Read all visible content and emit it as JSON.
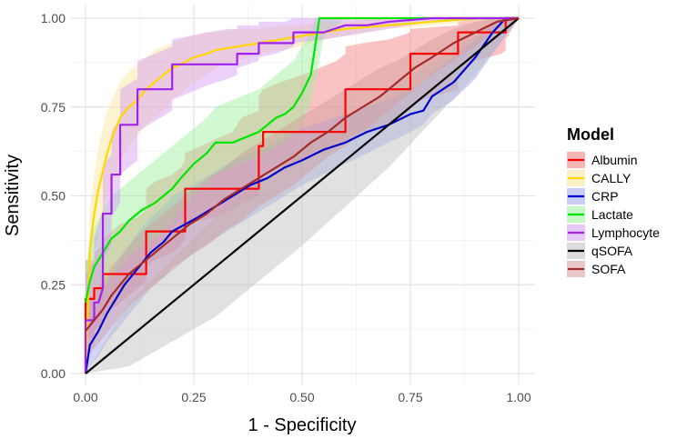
{
  "chart_data": {
    "type": "line",
    "title": "",
    "xlabel": "1 - Specificity",
    "ylabel": "Sensitivity",
    "xlim": [
      0,
      1
    ],
    "ylim": [
      0,
      1
    ],
    "x_ticks": [
      "0.00",
      "0.25",
      "0.50",
      "0.75",
      "1.00"
    ],
    "y_ticks": [
      "0.00",
      "0.25",
      "0.50",
      "0.75",
      "1.00"
    ],
    "grid": true,
    "legend": {
      "title": "Model",
      "position": "right"
    },
    "series": [
      {
        "name": "Albumin",
        "color": "#ff0000",
        "fill": "#f47a7a",
        "x": [
          0,
          0,
          0.02,
          0.02,
          0.04,
          0.04,
          0.06,
          0.08,
          0.12,
          0.14,
          0.14,
          0.16,
          0.2,
          0.22,
          0.23,
          0.23,
          0.3,
          0.34,
          0.36,
          0.4,
          0.4,
          0.41,
          0.41,
          0.45,
          0.5,
          0.54,
          0.58,
          0.6,
          0.6,
          0.64,
          0.7,
          0.75,
          0.75,
          0.86,
          0.86,
          0.9,
          0.96,
          0.97,
          0.97,
          1.0
        ],
        "y": [
          0,
          0.21,
          0.21,
          0.24,
          0.24,
          0.28,
          0.28,
          0.28,
          0.28,
          0.28,
          0.4,
          0.4,
          0.4,
          0.4,
          0.4,
          0.52,
          0.52,
          0.52,
          0.52,
          0.52,
          0.64,
          0.64,
          0.68,
          0.68,
          0.68,
          0.68,
          0.68,
          0.68,
          0.8,
          0.8,
          0.8,
          0.8,
          0.9,
          0.9,
          0.96,
          0.96,
          0.96,
          0.96,
          1.0,
          1.0
        ],
        "lower": [
          0,
          0.1,
          0.1,
          0.12,
          0.14,
          0.16,
          0.18,
          0.2,
          0.24,
          0.26,
          0.3,
          0.32,
          0.34,
          0.36,
          0.38,
          0.42,
          0.44,
          0.46,
          0.48,
          0.5,
          0.52,
          0.54,
          0.56,
          0.58,
          0.6,
          0.62,
          0.64,
          0.65,
          0.66,
          0.68,
          0.7,
          0.74,
          0.76,
          0.8,
          0.84,
          0.88,
          0.9,
          0.91,
          0.94,
          1.0
        ],
        "upper": [
          0,
          0.32,
          0.32,
          0.34,
          0.36,
          0.38,
          0.4,
          0.42,
          0.44,
          0.46,
          0.52,
          0.54,
          0.56,
          0.58,
          0.6,
          0.62,
          0.66,
          0.68,
          0.72,
          0.74,
          0.78,
          0.8,
          0.8,
          0.82,
          0.84,
          0.86,
          0.88,
          0.9,
          0.92,
          0.93,
          0.94,
          0.96,
          0.97,
          0.98,
          0.99,
          1.0,
          1.0,
          1.0,
          1.0,
          1.0
        ]
      },
      {
        "name": "CALLY",
        "color": "#ffd700",
        "fill": "#fce497",
        "x": [
          0,
          0.01,
          0.02,
          0.03,
          0.04,
          0.05,
          0.06,
          0.08,
          0.1,
          0.12,
          0.14,
          0.16,
          0.18,
          0.2,
          0.22,
          0.25,
          0.28,
          0.3,
          0.35,
          0.4,
          0.45,
          0.5,
          0.55,
          0.6,
          0.7,
          0.8,
          0.9,
          1.0
        ],
        "y": [
          0,
          0.35,
          0.45,
          0.52,
          0.57,
          0.62,
          0.66,
          0.72,
          0.75,
          0.77,
          0.8,
          0.82,
          0.84,
          0.86,
          0.87,
          0.89,
          0.9,
          0.91,
          0.92,
          0.93,
          0.94,
          0.95,
          0.96,
          0.97,
          0.98,
          0.99,
          1.0,
          1.0
        ],
        "lower": [
          0,
          0.24,
          0.33,
          0.4,
          0.45,
          0.5,
          0.54,
          0.6,
          0.64,
          0.67,
          0.7,
          0.72,
          0.74,
          0.77,
          0.79,
          0.82,
          0.84,
          0.86,
          0.88,
          0.9,
          0.91,
          0.92,
          0.94,
          0.95,
          0.97,
          0.98,
          0.99,
          1.0
        ],
        "upper": [
          0,
          0.46,
          0.56,
          0.64,
          0.69,
          0.74,
          0.77,
          0.82,
          0.85,
          0.87,
          0.89,
          0.91,
          0.92,
          0.93,
          0.94,
          0.95,
          0.96,
          0.96,
          0.97,
          0.97,
          0.98,
          0.98,
          0.99,
          0.99,
          1.0,
          1.0,
          1.0,
          1.0
        ]
      },
      {
        "name": "CRP",
        "color": "#0000cd",
        "fill": "#9aa5f0",
        "x": [
          0,
          0.01,
          0.03,
          0.05,
          0.07,
          0.09,
          0.11,
          0.13,
          0.15,
          0.18,
          0.2,
          0.23,
          0.26,
          0.3,
          0.34,
          0.38,
          0.42,
          0.46,
          0.5,
          0.55,
          0.6,
          0.65,
          0.7,
          0.75,
          0.78,
          0.8,
          0.85,
          0.9,
          0.94,
          0.97,
          1.0
        ],
        "y": [
          0,
          0.08,
          0.12,
          0.17,
          0.21,
          0.25,
          0.28,
          0.31,
          0.34,
          0.37,
          0.4,
          0.42,
          0.44,
          0.47,
          0.5,
          0.53,
          0.55,
          0.58,
          0.6,
          0.63,
          0.65,
          0.68,
          0.7,
          0.73,
          0.74,
          0.78,
          0.82,
          0.89,
          0.96,
          1.0,
          1.0
        ],
        "lower": [
          0,
          0.02,
          0.05,
          0.09,
          0.12,
          0.15,
          0.18,
          0.21,
          0.24,
          0.27,
          0.3,
          0.32,
          0.35,
          0.38,
          0.41,
          0.44,
          0.47,
          0.5,
          0.53,
          0.56,
          0.59,
          0.62,
          0.65,
          0.68,
          0.7,
          0.73,
          0.77,
          0.83,
          0.9,
          0.95,
          1.0
        ],
        "upper": [
          0,
          0.15,
          0.2,
          0.26,
          0.3,
          0.34,
          0.38,
          0.41,
          0.44,
          0.47,
          0.5,
          0.52,
          0.54,
          0.57,
          0.6,
          0.62,
          0.64,
          0.67,
          0.69,
          0.71,
          0.73,
          0.75,
          0.77,
          0.8,
          0.82,
          0.85,
          0.89,
          0.94,
          0.99,
          1.0,
          1.0
        ]
      },
      {
        "name": "Lactate",
        "color": "#00e600",
        "fill": "#98f098",
        "x": [
          0,
          0.01,
          0.02,
          0.04,
          0.06,
          0.08,
          0.1,
          0.13,
          0.16,
          0.18,
          0.2,
          0.22,
          0.25,
          0.28,
          0.3,
          0.32,
          0.34,
          0.36,
          0.4,
          0.42,
          0.44,
          0.46,
          0.48,
          0.5,
          0.52,
          0.53,
          0.54,
          0.55,
          0.6,
          0.7,
          0.8,
          0.9,
          1.0
        ],
        "y": [
          0.2,
          0.26,
          0.3,
          0.34,
          0.38,
          0.4,
          0.43,
          0.46,
          0.48,
          0.5,
          0.52,
          0.55,
          0.59,
          0.62,
          0.65,
          0.65,
          0.65,
          0.66,
          0.68,
          0.7,
          0.72,
          0.73,
          0.75,
          0.79,
          0.84,
          0.92,
          1.0,
          1.0,
          1.0,
          1.0,
          1.0,
          1.0,
          1.0
        ],
        "lower": [
          0.1,
          0.15,
          0.19,
          0.23,
          0.27,
          0.3,
          0.33,
          0.36,
          0.38,
          0.4,
          0.43,
          0.46,
          0.5,
          0.53,
          0.56,
          0.57,
          0.58,
          0.59,
          0.61,
          0.62,
          0.64,
          0.65,
          0.67,
          0.7,
          0.76,
          0.82,
          0.88,
          0.95,
          1.0,
          1.0,
          1.0,
          1.0,
          1.0
        ],
        "upper": [
          0.3,
          0.36,
          0.41,
          0.46,
          0.5,
          0.52,
          0.54,
          0.57,
          0.6,
          0.62,
          0.64,
          0.66,
          0.69,
          0.72,
          0.75,
          0.76,
          0.77,
          0.78,
          0.8,
          0.82,
          0.84,
          0.86,
          0.88,
          0.92,
          0.96,
          1.0,
          1.0,
          1.0,
          1.0,
          1.0,
          1.0,
          1.0,
          1.0
        ]
      },
      {
        "name": "Lymphocyte",
        "color": "#a020f0",
        "fill": "#d39af5",
        "x": [
          0,
          0,
          0.02,
          0.02,
          0.03,
          0.04,
          0.04,
          0.06,
          0.06,
          0.08,
          0.08,
          0.12,
          0.12,
          0.16,
          0.2,
          0.2,
          0.24,
          0.28,
          0.33,
          0.35,
          0.35,
          0.4,
          0.4,
          0.44,
          0.46,
          0.48,
          0.48,
          0.55,
          0.6,
          0.65,
          0.7,
          0.8,
          1.0
        ],
        "y": [
          0,
          0.15,
          0.15,
          0.2,
          0.2,
          0.24,
          0.45,
          0.45,
          0.56,
          0.56,
          0.7,
          0.7,
          0.8,
          0.8,
          0.8,
          0.87,
          0.87,
          0.87,
          0.87,
          0.87,
          0.9,
          0.9,
          0.93,
          0.93,
          0.93,
          0.93,
          0.96,
          0.96,
          0.98,
          0.98,
          0.99,
          1.0,
          1.0
        ],
        "lower": [
          0,
          0.05,
          0.08,
          0.12,
          0.14,
          0.18,
          0.32,
          0.36,
          0.44,
          0.48,
          0.56,
          0.6,
          0.68,
          0.71,
          0.74,
          0.77,
          0.79,
          0.81,
          0.83,
          0.84,
          0.86,
          0.88,
          0.89,
          0.9,
          0.91,
          0.92,
          0.93,
          0.94,
          0.95,
          0.96,
          0.97,
          0.99,
          1.0
        ],
        "upper": [
          0,
          0.28,
          0.32,
          0.38,
          0.42,
          0.46,
          0.58,
          0.62,
          0.68,
          0.72,
          0.8,
          0.83,
          0.88,
          0.9,
          0.92,
          0.94,
          0.95,
          0.96,
          0.97,
          0.97,
          0.98,
          0.98,
          0.99,
          0.99,
          0.99,
          1.0,
          1.0,
          1.0,
          1.0,
          1.0,
          1.0,
          1.0,
          1.0
        ]
      },
      {
        "name": "qSOFA",
        "color": "#000000",
        "fill": "#bdbdbd",
        "x": [
          0,
          1.0
        ],
        "y": [
          0,
          1.0
        ],
        "lower": [
          0,
          1.0
        ],
        "upper": [
          0,
          1.0
        ]
      },
      {
        "name": "SOFA",
        "color": "#a52a2a",
        "fill": "#d29b9b",
        "x": [
          0,
          0.02,
          0.04,
          0.06,
          0.08,
          0.1,
          0.13,
          0.16,
          0.2,
          0.24,
          0.28,
          0.32,
          0.36,
          0.4,
          0.44,
          0.48,
          0.52,
          0.56,
          0.6,
          0.64,
          0.68,
          0.72,
          0.76,
          0.8,
          0.85,
          0.9,
          0.95,
          1.0
        ],
        "y": [
          0.12,
          0.15,
          0.18,
          0.22,
          0.25,
          0.28,
          0.31,
          0.34,
          0.38,
          0.42,
          0.45,
          0.49,
          0.52,
          0.55,
          0.58,
          0.61,
          0.65,
          0.68,
          0.72,
          0.75,
          0.78,
          0.82,
          0.86,
          0.89,
          0.93,
          0.96,
          0.99,
          1.0
        ],
        "lower": [
          0.04,
          0.07,
          0.1,
          0.13,
          0.16,
          0.19,
          0.22,
          0.25,
          0.29,
          0.33,
          0.36,
          0.4,
          0.43,
          0.47,
          0.5,
          0.53,
          0.57,
          0.61,
          0.64,
          0.68,
          0.72,
          0.76,
          0.8,
          0.84,
          0.88,
          0.92,
          0.97,
          1.0
        ],
        "upper": [
          0.2,
          0.23,
          0.26,
          0.3,
          0.33,
          0.36,
          0.4,
          0.43,
          0.47,
          0.51,
          0.55,
          0.58,
          0.62,
          0.65,
          0.68,
          0.71,
          0.74,
          0.77,
          0.8,
          0.83,
          0.86,
          0.88,
          0.91,
          0.94,
          0.97,
          0.99,
          1.0,
          1.0
        ]
      }
    ]
  }
}
